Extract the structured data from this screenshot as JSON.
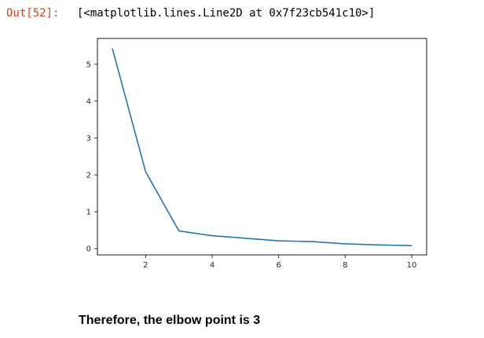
{
  "output_cell": {
    "prompt": "Out[52]:",
    "repr": "[<matplotlib.lines.Line2D at 0x7f23cb541c10>]"
  },
  "chart_data": {
    "type": "line",
    "title": "",
    "xlabel": "",
    "ylabel": "",
    "x": [
      1,
      2,
      3,
      4,
      5,
      6,
      7,
      8,
      9,
      10
    ],
    "series": [
      {
        "values": [
          5.43,
          2.08,
          0.48,
          0.35,
          0.28,
          0.21,
          0.19,
          0.13,
          0.1,
          0.08
        ]
      }
    ],
    "xlim": [
      0.55,
      10.45
    ],
    "ylim": [
      -0.17,
      5.7
    ],
    "x_ticks": [
      2,
      4,
      6,
      8,
      10
    ],
    "y_ticks": [
      0,
      1,
      2,
      3,
      4,
      5
    ],
    "grid": false,
    "line_color": "#1f77b4"
  },
  "conclusion": "Therefore, the elbow point is 3"
}
